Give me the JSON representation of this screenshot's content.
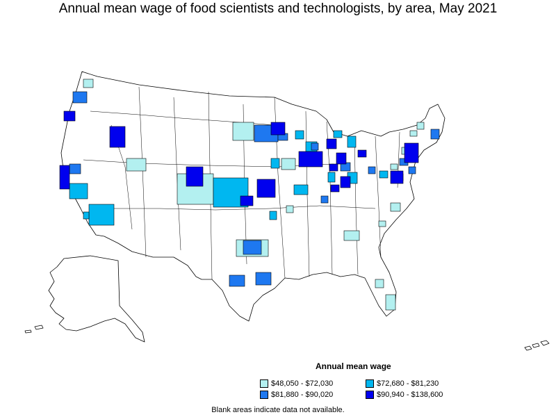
{
  "title": "Annual mean wage of food scientists and technologists, by area, May 2021",
  "legend": {
    "title": "Annual mean wage",
    "items": [
      {
        "label": "$48,050 - $72,030",
        "color": "#b3f0f0"
      },
      {
        "label": "$72,680 - $81,230",
        "color": "#00b7f0"
      },
      {
        "label": "$81,880 - $90,020",
        "color": "#1e78f0"
      },
      {
        "label": "$90,940 - $138,600",
        "color": "#0000ee"
      }
    ]
  },
  "footnote": "Blank areas indicate data not available."
}
